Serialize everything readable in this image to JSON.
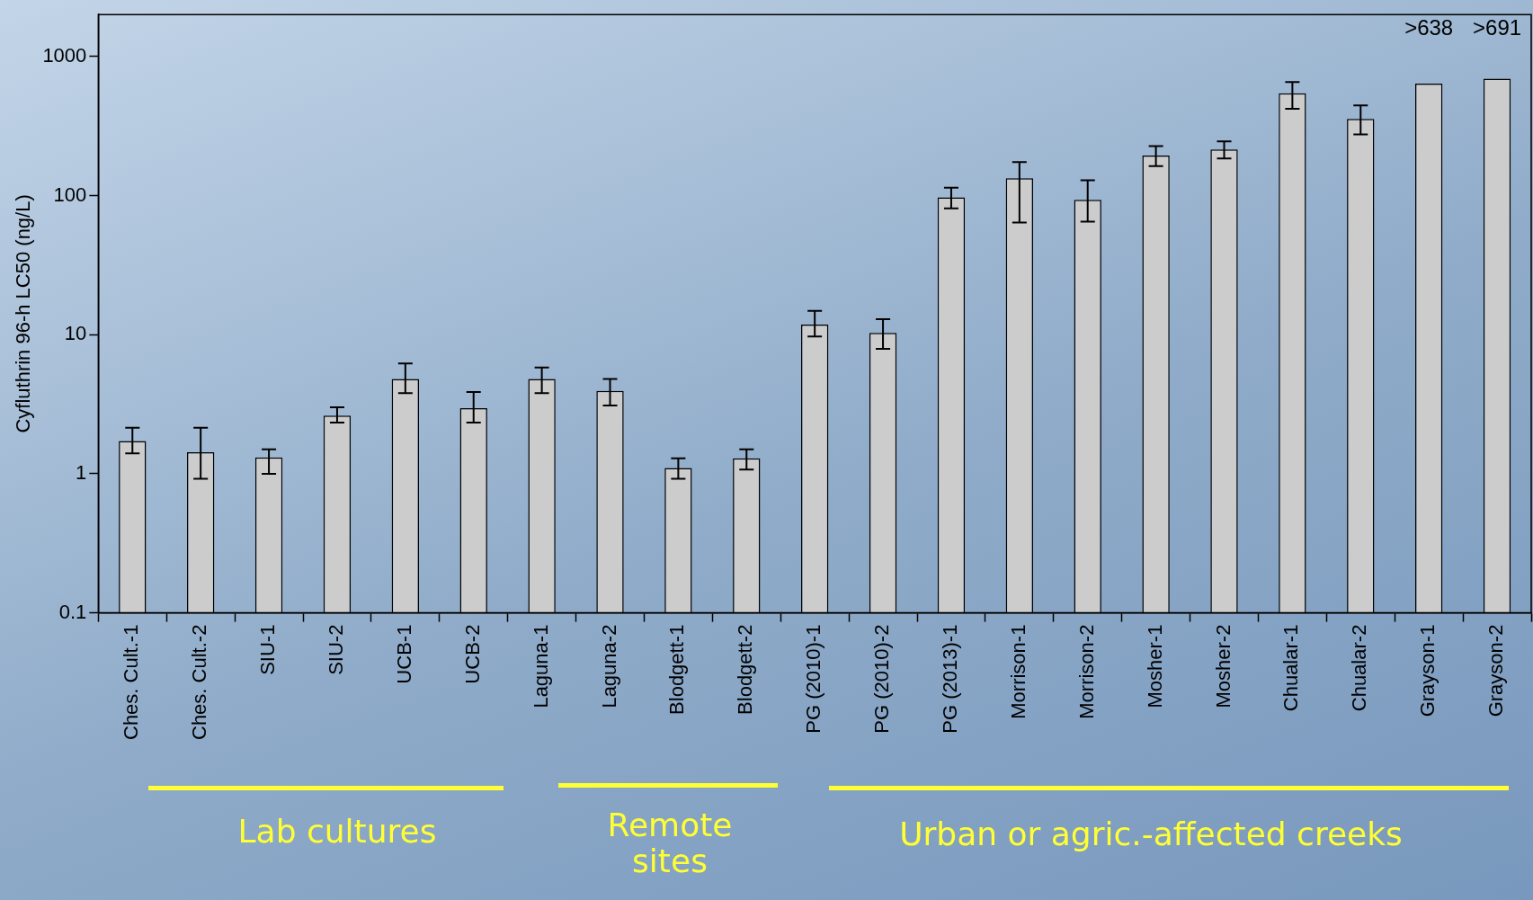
{
  "chart_data": {
    "type": "bar",
    "ylabel": "Cyfluthrin 96-h LC50 (ng/L)",
    "categories": [
      "Ches. Cult.-1",
      "Ches. Cult.-2",
      "SIU-1",
      "SIU-2",
      "UCB-1",
      "UCB-2",
      "Laguna-1",
      "Laguna-2",
      "Blodgett-1",
      "Blodgett-2",
      "PG (2010)-1",
      "PG (2010)-2",
      "PG (2013)-1",
      "Morrison-1",
      "Morrison-2",
      "Mosher-1",
      "Mosher-2",
      "Chualar-1",
      "Chualar-2",
      "Grayson-1",
      "Grayson-2"
    ],
    "values": [
      1.72,
      1.43,
      1.31,
      2.62,
      4.8,
      2.96,
      4.8,
      3.94,
      1.1,
      1.29,
      11.8,
      10.3,
      97,
      133,
      93,
      194,
      214,
      543,
      355,
      638,
      691
    ],
    "errors": [
      [
        1.4,
        2.14
      ],
      [
        0.92,
        2.14
      ],
      [
        1.0,
        1.5
      ],
      [
        2.33,
        3.0
      ],
      [
        3.8,
        6.2
      ],
      [
        2.33,
        3.87
      ],
      [
        3.8,
        5.8
      ],
      [
        3.1,
        4.8
      ],
      [
        0.92,
        1.29
      ],
      [
        1.07,
        1.5
      ],
      [
        9.7,
        14.8
      ],
      [
        7.9,
        12.9
      ],
      [
        81,
        114
      ],
      [
        64,
        174
      ],
      [
        65,
        129
      ],
      [
        163,
        227
      ],
      [
        185,
        245
      ],
      [
        421,
        655
      ],
      [
        275,
        444
      ],
      null,
      null
    ],
    "value_labels": [
      null,
      null,
      null,
      null,
      null,
      null,
      null,
      null,
      null,
      null,
      null,
      null,
      null,
      null,
      null,
      null,
      null,
      null,
      null,
      ">638",
      ">691"
    ],
    "color": "#cccccc",
    "log": "y",
    "ylim": [
      0.1,
      2000
    ],
    "yticks": [
      0.1,
      1,
      10,
      100,
      1000
    ],
    "grid": false,
    "legend": false,
    "annotations": [
      "Lab cultures",
      "Remote sites",
      "Urban or agric.-affected creeks"
    ]
  }
}
